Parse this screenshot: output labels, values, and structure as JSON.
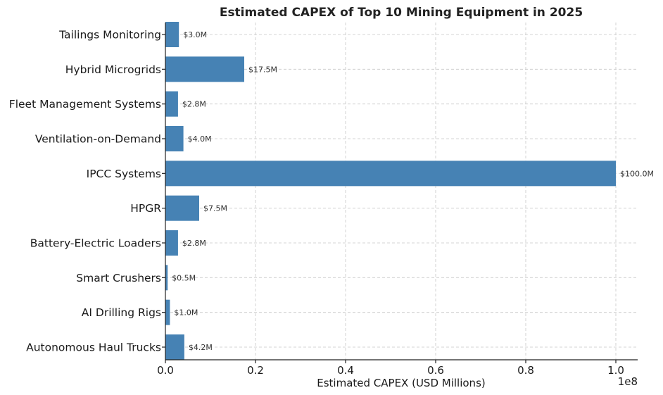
{
  "chart_data": {
    "type": "bar",
    "orientation": "horizontal",
    "title": "Estimated CAPEX of Top 10 Mining Equipment in 2025",
    "xlabel": "Estimated CAPEX (USD Millions)",
    "ylabel": "",
    "x_scale_label": "1e8",
    "xlim": [
      0,
      105000000
    ],
    "xticks": [
      0,
      20000000,
      40000000,
      60000000,
      80000000,
      100000000
    ],
    "xtick_labels": [
      "0.0",
      "0.2",
      "0.4",
      "0.6",
      "0.8",
      "1.0"
    ],
    "grid": true,
    "bar_color": "#4682b4",
    "categories": [
      "Autonomous Haul Trucks",
      "AI Drilling Rigs",
      "Smart Crushers",
      "Battery-Electric Loaders",
      "HPGR",
      "IPCC Systems",
      "Ventilation-on-Demand",
      "Fleet Management Systems",
      "Hybrid Microgrids",
      "Tailings Monitoring"
    ],
    "values": [
      4200000,
      1000000,
      500000,
      2800000,
      7500000,
      100000000,
      4000000,
      2800000,
      17500000,
      3000000
    ],
    "data_labels": [
      "$4.2M",
      "$1.0M",
      "$0.5M",
      "$2.8M",
      "$7.5M",
      "$100.0M",
      "$4.0M",
      "$2.8M",
      "$17.5M",
      "$3.0M"
    ]
  }
}
